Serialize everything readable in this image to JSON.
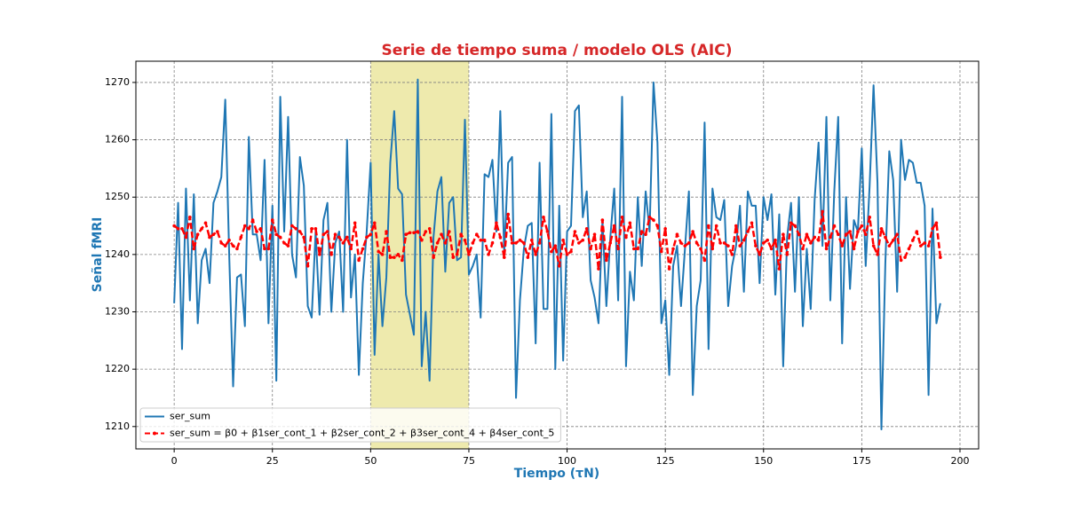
{
  "chart_data": {
    "type": "line",
    "title": "Serie de tiempo suma / modelo OLS (AIC)",
    "xlabel": "Tiempo (τN)",
    "ylabel": "Señal fMRI",
    "xlim": [
      -9.75,
      204.75
    ],
    "ylim": [
      1206.1,
      1273.7
    ],
    "xticks": [
      0,
      25,
      50,
      75,
      100,
      125,
      150,
      175,
      200
    ],
    "yticks": [
      1210,
      1220,
      1230,
      1240,
      1250,
      1260,
      1270
    ],
    "grid": true,
    "legend": "lower left",
    "span": [
      50,
      75
    ],
    "span_color": "#eeeaad",
    "x": [
      0,
      1,
      2,
      3,
      4,
      5,
      6,
      7,
      8,
      9,
      10,
      11,
      12,
      13,
      14,
      15,
      16,
      17,
      18,
      19,
      20,
      21,
      22,
      23,
      24,
      25,
      26,
      27,
      28,
      29,
      30,
      31,
      32,
      33,
      34,
      35,
      36,
      37,
      38,
      39,
      40,
      41,
      42,
      43,
      44,
      45,
      46,
      47,
      48,
      49,
      50,
      51,
      52,
      53,
      54,
      55,
      56,
      57,
      58,
      59,
      60,
      61,
      62,
      63,
      64,
      65,
      66,
      67,
      68,
      69,
      70,
      71,
      72,
      73,
      74,
      75,
      76,
      77,
      78,
      79,
      80,
      81,
      82,
      83,
      84,
      85,
      86,
      87,
      88,
      89,
      90,
      91,
      92,
      93,
      94,
      95,
      96,
      97,
      98,
      99,
      100,
      101,
      102,
      103,
      104,
      105,
      106,
      107,
      108,
      109,
      110,
      111,
      112,
      113,
      114,
      115,
      116,
      117,
      118,
      119,
      120,
      121,
      122,
      123,
      124,
      125,
      126,
      127,
      128,
      129,
      130,
      131,
      132,
      133,
      134,
      135,
      136,
      137,
      138,
      139,
      140,
      141,
      142,
      143,
      144,
      145,
      146,
      147,
      148,
      149,
      150,
      151,
      152,
      153,
      154,
      155,
      156,
      157,
      158,
      159,
      160,
      161,
      162,
      163,
      164,
      165,
      166,
      167,
      168,
      169,
      170,
      171,
      172,
      173,
      174,
      175,
      176,
      177,
      178,
      179,
      180,
      181,
      182,
      183,
      184,
      185,
      186,
      187,
      188,
      189,
      190,
      191,
      192,
      193,
      194,
      195
    ],
    "series": [
      {
        "name": "ser_sum",
        "color": "#1f77b4",
        "style": "solid",
        "values": [
          1231.5,
          1249,
          1223.5,
          1251.5,
          1232,
          1250.5,
          1228,
          1239,
          1241,
          1235,
          1249,
          1251,
          1253.5,
          1267,
          1240,
          1217,
          1236,
          1236.5,
          1227.5,
          1260.5,
          1243.5,
          1243.5,
          1239,
          1256.5,
          1228,
          1248.5,
          1218,
          1267.5,
          1244,
          1264,
          1240,
          1236,
          1257,
          1252,
          1231,
          1229,
          1244,
          1229.5,
          1246,
          1249,
          1230,
          1242,
          1244,
          1230,
          1260,
          1232.5,
          1240,
          1219,
          1235,
          1244,
          1256,
          1222.5,
          1240,
          1227.5,
          1236,
          1256,
          1265,
          1251.5,
          1250.5,
          1233,
          1229.5,
          1226,
          1270.5,
          1220.5,
          1230,
          1218,
          1243,
          1251,
          1253.5,
          1237,
          1249,
          1250,
          1239,
          1239.5,
          1263.5,
          1236.5,
          1238,
          1240,
          1229,
          1254,
          1253.5,
          1256.5,
          1244,
          1265,
          1240,
          1256,
          1257,
          1215,
          1232,
          1241,
          1245,
          1245.5,
          1224.5,
          1256,
          1230.5,
          1230.5,
          1264.5,
          1220,
          1248.5,
          1221.5,
          1244,
          1245,
          1265,
          1266,
          1246.5,
          1251,
          1235.5,
          1232.5,
          1228,
          1246,
          1231,
          1243,
          1251.5,
          1232,
          1267.5,
          1220.5,
          1237,
          1232,
          1250,
          1238,
          1251,
          1244,
          1270,
          1259.5,
          1228,
          1232,
          1219,
          1238,
          1241.5,
          1231,
          1241,
          1251,
          1215.5,
          1231,
          1235.5,
          1263,
          1223.5,
          1251.5,
          1246.5,
          1246,
          1249.5,
          1231,
          1238,
          1241.5,
          1248.5,
          1233.5,
          1251,
          1248.5,
          1248.5,
          1235,
          1250,
          1246,
          1250.5,
          1233,
          1247,
          1220.5,
          1243,
          1249,
          1233.5,
          1250,
          1227.5,
          1241,
          1230.5,
          1249.5,
          1259.5,
          1241.5,
          1264,
          1232,
          1251,
          1264,
          1224.5,
          1250,
          1234,
          1246,
          1244,
          1258.5,
          1238,
          1252,
          1269.5,
          1252.5,
          1209.5,
          1238.5,
          1258,
          1253,
          1233.5,
          1260,
          1253,
          1256.5,
          1256,
          1252.5,
          1252.5,
          1248.5,
          1215.5,
          1248,
          1228,
          1231.5
        ]
      },
      {
        "name": "ser_sum = β0 + β1ser_cont_1 + β2ser_cont_2 + β3ser_cont_4 + β4ser_cont_5",
        "color": "#ff0000",
        "style": "dashed-dots",
        "values": [
          1245,
          1244.5,
          1244.5,
          1243,
          1246.5,
          1241,
          1243.5,
          1244.5,
          1245.5,
          1243,
          1243.5,
          1244,
          1242,
          1241.5,
          1242.5,
          1241.5,
          1241,
          1243,
          1245,
          1244.5,
          1246,
          1244,
          1244.5,
          1241,
          1241,
          1246,
          1243.5,
          1243,
          1242,
          1241.5,
          1245,
          1244.5,
          1244,
          1243,
          1238,
          1244.5,
          1244.5,
          1240,
          1243.5,
          1244,
          1240,
          1243.5,
          1243,
          1242,
          1243,
          1241,
          1245.5,
          1239,
          1241,
          1243,
          1243.5,
          1245.5,
          1240.5,
          1240,
          1244,
          1239.5,
          1239.5,
          1240,
          1239,
          1243.5,
          1243.8,
          1243.8,
          1244,
          1242.5,
          1244,
          1244.5,
          1239.5,
          1242,
          1243.5,
          1242,
          1244,
          1239.5,
          1240,
          1243.5,
          1242.5,
          1240,
          1242,
          1243.5,
          1242.5,
          1242.5,
          1240,
          1242,
          1245.5,
          1243,
          1239.5,
          1247,
          1242,
          1242,
          1242.5,
          1242,
          1239.5,
          1242.5,
          1240,
          1242,
          1246.5,
          1244,
          1240.5,
          1241.5,
          1238,
          1242.5,
          1240,
          1240.5,
          1244,
          1242,
          1242.5,
          1244.5,
          1241,
          1243.5,
          1237.5,
          1246,
          1239,
          1242,
          1245,
          1241,
          1246.5,
          1243,
          1245.5,
          1241,
          1241,
          1244,
          1243.5,
          1246.5,
          1246,
          1245,
          1240.5,
          1244.5,
          1237.5,
          1241,
          1243.5,
          1242,
          1241.5,
          1242,
          1244,
          1242,
          1241,
          1239,
          1245,
          1241,
          1245,
          1242,
          1242,
          1241.5,
          1240,
          1245,
          1241.5,
          1242.5,
          1244,
          1245.5,
          1241.5,
          1240,
          1242,
          1242.5,
          1241,
          1242.5,
          1237.5,
          1243.5,
          1240,
          1245.5,
          1245,
          1243.5,
          1241,
          1243.5,
          1242,
          1243,
          1242.5,
          1247.5,
          1241,
          1243,
          1245,
          1243.5,
          1241.5,
          1243.5,
          1244,
          1241,
          1244,
          1245,
          1243.5,
          1246.5,
          1241.5,
          1240,
          1244.5,
          1243,
          1241.5,
          1242.5,
          1243.5,
          1239,
          1239.5,
          1241,
          1242.5,
          1244,
          1241.5,
          1242,
          1241.5,
          1244.5,
          1245.5,
          1239.5
        ]
      }
    ]
  }
}
